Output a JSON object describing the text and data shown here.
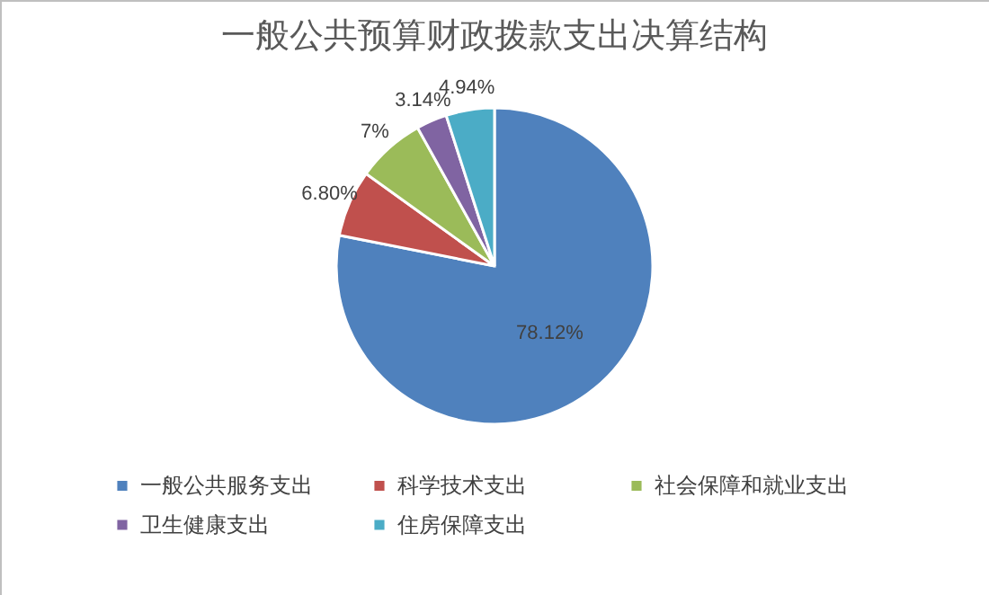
{
  "chart_data": {
    "type": "pie",
    "title": "一般公共预算财政拨款支出决算结构",
    "categories": [
      "一般公共服务支出",
      "科学技术支出",
      "社会保障和就业支出",
      "卫生健康支出",
      "住房保障支出"
    ],
    "values": [
      78.12,
      6.8,
      7,
      3.14,
      4.94
    ],
    "colors": [
      "#4f81bd",
      "#c0504d",
      "#9bbb59",
      "#8064a2",
      "#4bacc6"
    ],
    "value_labels": [
      "78.12%",
      "6.80%",
      "7%",
      "3.14%",
      "4.94%"
    ],
    "legend": "bottom"
  }
}
